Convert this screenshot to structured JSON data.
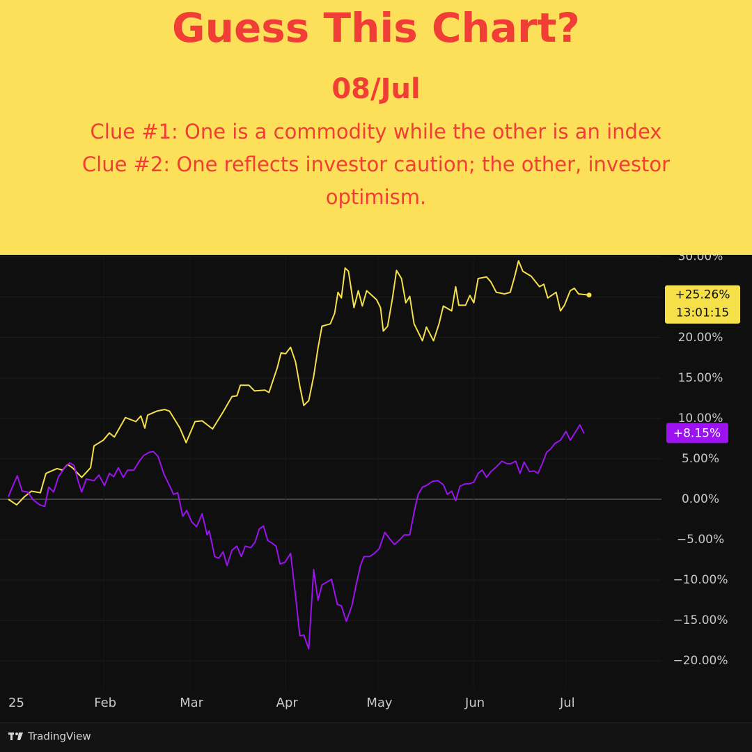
{
  "header": {
    "title": "Guess This Chart?",
    "date": "08/Jul",
    "clues": [
      "Clue #1: One is a commodity while the other is an index",
      "Clue #2: One reflects investor caution; the other, investor optimism."
    ]
  },
  "chart_data": {
    "type": "line",
    "xlim": [
      0,
      212
    ],
    "ylim": [
      -23.5,
      30.5
    ],
    "xticks": [
      {
        "value": 0,
        "label": "25"
      },
      {
        "value": 31,
        "label": "Feb"
      },
      {
        "value": 59,
        "label": "Mar"
      },
      {
        "value": 90,
        "label": "Apr"
      },
      {
        "value": 120,
        "label": "May"
      },
      {
        "value": 151,
        "label": "Jun"
      },
      {
        "value": 181,
        "label": "Jul"
      }
    ],
    "yticks": [
      {
        "value": 30,
        "label": "30.00%"
      },
      {
        "value": 25,
        "label": "25.00%"
      },
      {
        "value": 20,
        "label": "20.00%"
      },
      {
        "value": 15,
        "label": "15.00%"
      },
      {
        "value": 10,
        "label": "10.00%"
      },
      {
        "value": 5,
        "label": "5.00%"
      },
      {
        "value": 0,
        "label": "0.00%"
      },
      {
        "value": -5,
        "label": "−5.00%"
      },
      {
        "value": -10,
        "label": "−10.00%"
      },
      {
        "value": -15,
        "label": "−15.00%"
      },
      {
        "value": -20,
        "label": "−20.00%"
      }
    ],
    "grid": true,
    "series": [
      {
        "color": "#f5e04a",
        "last_label": "+25.26%",
        "time_label": "13:01:15",
        "x": [
          0,
          2.7,
          5.2,
          7.5,
          10.4,
          12.2,
          15.8,
          17.6,
          19.2,
          20.8,
          23.8,
          26.7,
          27.8,
          30.8,
          32.8,
          34.4,
          38.0,
          41.4,
          43.0,
          44.3,
          45.2,
          48.2,
          50.7,
          52.3,
          55.7,
          57.7,
          60.6,
          62.9,
          66.3,
          69.7,
          72.6,
          74.2,
          75.3,
          78.1,
          79.9,
          83.3,
          84.6,
          87.3,
          88.5,
          90.0,
          91.6,
          93.2,
          94.6,
          95.9,
          97.5,
          99.1,
          100.5,
          101.8,
          104.5,
          105.9,
          107.0,
          108.1,
          109.3,
          110.4,
          112.2,
          113.6,
          114.9,
          116.3,
          119.5,
          120.8,
          121.7,
          123.1,
          124.7,
          126.0,
          127.6,
          129.0,
          130.3,
          131.7,
          134.4,
          135.7,
          138.0,
          139.8,
          141.2,
          143.9,
          145.2,
          146.2,
          148.4,
          149.8,
          151.1,
          152.5,
          155.2,
          156.6,
          158.4,
          161.1,
          162.9,
          164.3,
          165.6,
          167.0,
          169.7,
          172.4,
          173.8,
          175.1,
          177.8,
          179.2,
          180.5,
          182.4,
          183.7,
          185.1,
          188.5
        ],
        "values": [
          0,
          -0.7,
          0.3,
          1.0,
          0.8,
          3.2,
          3.8,
          3.6,
          4.3,
          3.9,
          2.7,
          3.9,
          6.6,
          7.3,
          8.2,
          7.7,
          10.1,
          9.6,
          10.3,
          8.8,
          10.4,
          10.9,
          11.1,
          10.9,
          8.8,
          7.0,
          9.6,
          9.7,
          8.7,
          10.8,
          12.7,
          12.8,
          14.1,
          14.1,
          13.4,
          13.5,
          13.2,
          16.3,
          18.1,
          18.0,
          18.8,
          17.0,
          14.0,
          11.6,
          12.2,
          15.2,
          18.7,
          21.4,
          21.7,
          23.0,
          25.6,
          24.9,
          28.6,
          28.2,
          23.7,
          25.8,
          23.9,
          25.8,
          24.7,
          23.7,
          20.8,
          21.4,
          24.9,
          28.3,
          27.3,
          24.3,
          25.1,
          21.7,
          19.6,
          21.3,
          19.6,
          21.7,
          23.9,
          23.3,
          26.3,
          24.0,
          24.0,
          25.2,
          24.3,
          27.3,
          27.5,
          26.9,
          25.6,
          25.4,
          25.6,
          27.5,
          29.5,
          28.2,
          27.6,
          26.3,
          26.6,
          24.9,
          25.6,
          23.3,
          24.0,
          25.8,
          26.1,
          25.4,
          25.26
        ]
      },
      {
        "color": "#9c12f0",
        "last_label": "+8.15%",
        "x": [
          0,
          1.4,
          2.9,
          4.5,
          6.3,
          8.1,
          10.2,
          11.8,
          13.1,
          14.7,
          16.3,
          18.1,
          19.9,
          21.3,
          22.6,
          23.8,
          25.3,
          27.8,
          29.4,
          31.2,
          32.8,
          34.2,
          35.7,
          37.3,
          38.7,
          40.7,
          42.5,
          43.9,
          45.7,
          47.1,
          48.6,
          50.5,
          52.3,
          53.6,
          55.0,
          56.6,
          57.9,
          59.5,
          61.1,
          62.9,
          64.5,
          65.2,
          67.0,
          68.3,
          69.7,
          71.0,
          72.6,
          74.2,
          75.6,
          76.9,
          78.7,
          80.1,
          81.4,
          82.8,
          84.2,
          85.5,
          86.9,
          88.2,
          89.8,
          91.6,
          93.0,
          94.6,
          95.9,
          97.5,
          99.1,
          100.5,
          101.8,
          103.6,
          104.9,
          106.8,
          108.1,
          109.7,
          111.5,
          112.9,
          114.3,
          115.4,
          117.2,
          118.8,
          120.4,
          122.2,
          124.0,
          125.3,
          127.1,
          128.5,
          130.3,
          131.7,
          133.0,
          134.4,
          135.7,
          137.6,
          139.4,
          141.2,
          142.5,
          143.9,
          145.2,
          146.6,
          148.2,
          149.5,
          151.1,
          152.5,
          153.8,
          155.2,
          156.6,
          158.4,
          160.2,
          161.8,
          163.1,
          164.7,
          166.1,
          167.4,
          169.2,
          170.6,
          171.9,
          173.3,
          174.7,
          176.0,
          177.4,
          179.2,
          181.0,
          182.4,
          184.2,
          185.5,
          186.9
        ],
        "values": [
          0.3,
          1.6,
          2.9,
          1.0,
          0.9,
          -0.1,
          -0.7,
          -0.9,
          1.5,
          0.9,
          2.8,
          3.8,
          4.5,
          4.2,
          2.3,
          0.9,
          2.5,
          2.3,
          3.0,
          1.7,
          3.2,
          2.8,
          3.9,
          2.7,
          3.6,
          3.6,
          4.7,
          5.4,
          5.8,
          5.9,
          5.3,
          3.1,
          1.7,
          0.6,
          0.8,
          -2.1,
          -1.4,
          -2.8,
          -3.4,
          -1.8,
          -4.4,
          -3.9,
          -7.1,
          -7.3,
          -6.5,
          -8.2,
          -6.3,
          -5.8,
          -7.1,
          -5.8,
          -6.0,
          -5.3,
          -3.7,
          -3.3,
          -5.1,
          -5.4,
          -5.8,
          -8.0,
          -7.8,
          -6.7,
          -11.2,
          -16.9,
          -16.8,
          -18.5,
          -8.7,
          -12.5,
          -10.6,
          -10.2,
          -9.9,
          -13.0,
          -13.2,
          -15.1,
          -13.2,
          -10.6,
          -8.2,
          -7.1,
          -7.1,
          -6.7,
          -6.1,
          -4.1,
          -5.0,
          -5.6,
          -5.0,
          -4.4,
          -4.4,
          -1.6,
          0.6,
          1.5,
          1.7,
          2.2,
          2.3,
          1.8,
          0.6,
          1.0,
          -0.2,
          1.6,
          1.9,
          1.9,
          2.1,
          3.2,
          3.6,
          2.7,
          3.4,
          4.0,
          4.7,
          4.4,
          4.4,
          4.7,
          3.2,
          4.6,
          3.4,
          3.5,
          3.2,
          4.4,
          5.8,
          6.2,
          6.9,
          7.3,
          8.4,
          7.3,
          8.4,
          9.2,
          8.15
        ]
      }
    ]
  },
  "footer": {
    "brand": "TradingView"
  }
}
